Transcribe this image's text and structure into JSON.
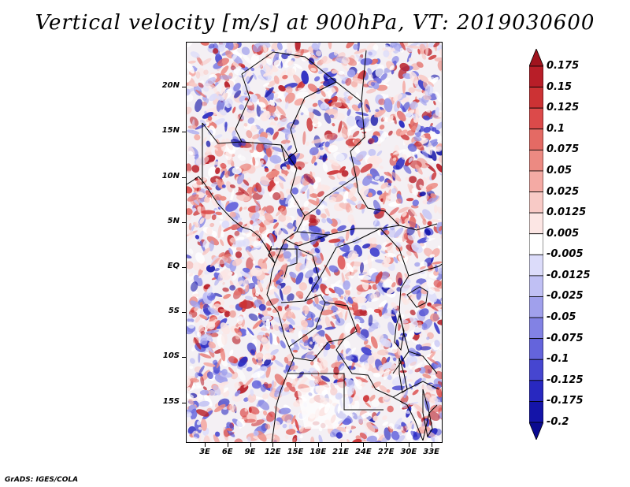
{
  "title": "Vertical velocity [m/s] at 900hPa, VT: 2019030600",
  "credit": "GrADS: IGES/COLA",
  "lat_ticks": [
    "20N",
    "15N",
    "10N",
    "5N",
    "EQ",
    "5S",
    "10S",
    "15S"
  ],
  "lat_values": [
    20,
    15,
    10,
    5,
    0,
    -5,
    -10,
    -15
  ],
  "lon_ticks": [
    "3E",
    "6E",
    "9E",
    "12E",
    "15E",
    "18E",
    "21E",
    "24E",
    "27E",
    "30E",
    "33E"
  ],
  "lon_values": [
    3,
    6,
    9,
    12,
    15,
    18,
    21,
    24,
    27,
    30,
    33
  ],
  "lon_range": [
    0.5,
    34.5
  ],
  "lat_range": [
    -19.5,
    25
  ],
  "colorbar": {
    "levels": [
      "0.175",
      "0.15",
      "0.125",
      "0.1",
      "0.075",
      "0.05",
      "0.025",
      "0.0125",
      "0.005",
      "-0.005",
      "-0.0125",
      "-0.025",
      "-0.05",
      "-0.075",
      "-0.1",
      "-0.125",
      "-0.175",
      "-0.2"
    ],
    "colors": [
      "#a0141e",
      "#b81e28",
      "#cc3234",
      "#dc4a4a",
      "#e46a64",
      "#ec8a82",
      "#f4aaa4",
      "#f8cac6",
      "#fce6e4",
      "#ffffff",
      "#dcdcfa",
      "#c0c0f4",
      "#a0a0ec",
      "#8282e4",
      "#6464dc",
      "#4646d0",
      "#2828c0",
      "#1414a8",
      "#0a0a90"
    ]
  }
}
